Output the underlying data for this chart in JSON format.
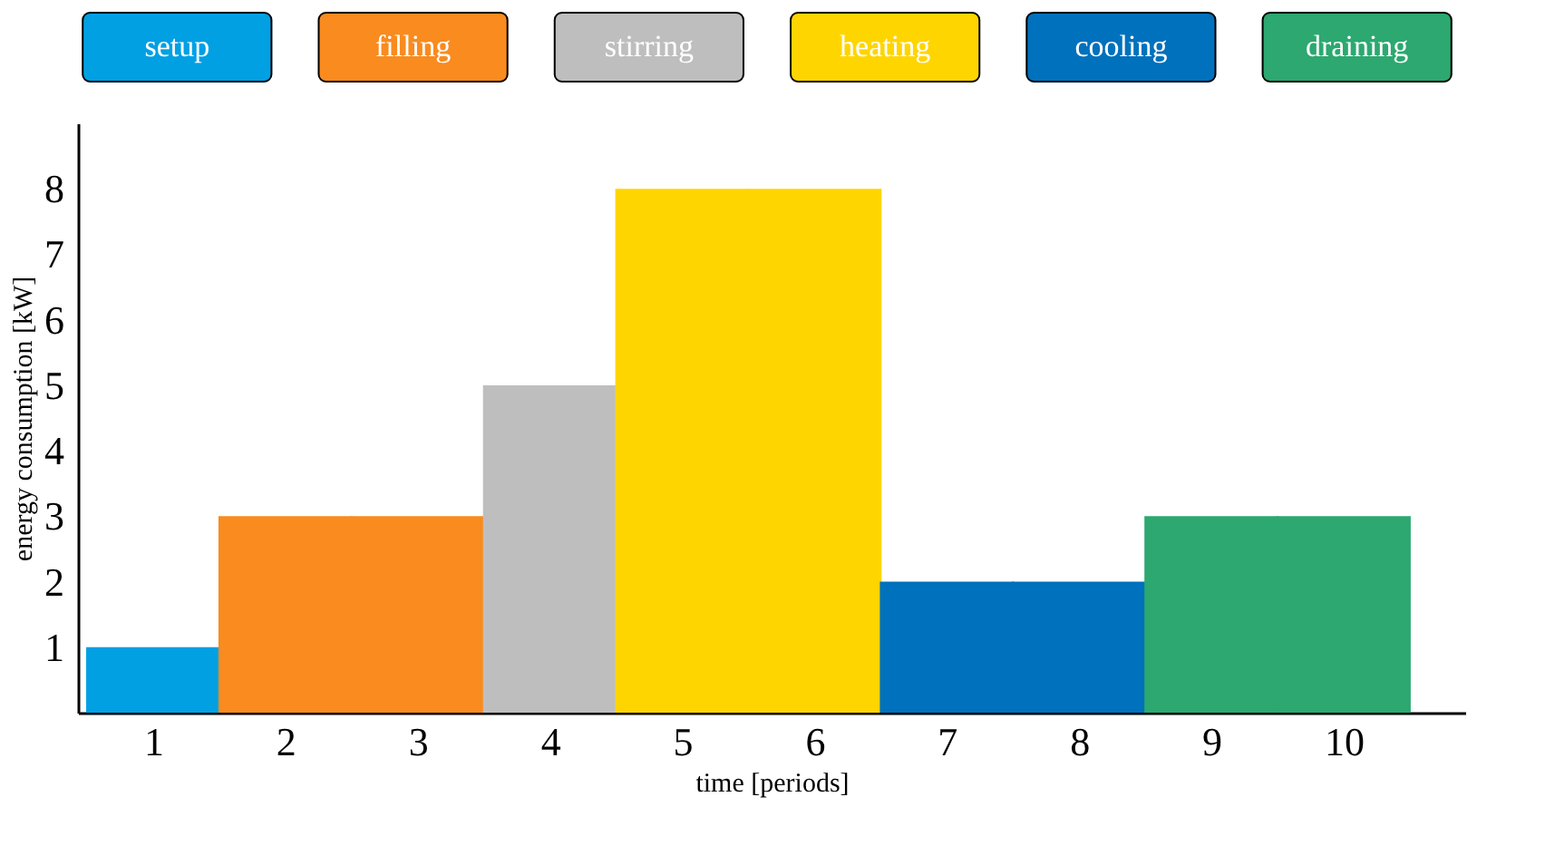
{
  "chart_data": {
    "type": "bar",
    "xlabel": "time [periods]",
    "ylabel": "energy consumption [kW]",
    "xlim": [
      0.5,
      10.85
    ],
    "xticks": [
      1,
      2,
      3,
      4,
      5,
      6,
      7,
      8,
      9,
      10
    ],
    "ylim": [
      0,
      9
    ],
    "yticks": [
      1,
      2,
      3,
      4,
      5,
      6,
      7,
      8
    ],
    "grid": false,
    "legend": "top",
    "series": [
      {
        "name": "setup",
        "color": "#00a0e3",
        "x": [
          1
        ],
        "values": [
          1
        ]
      },
      {
        "name": "filling",
        "color": "#f98b1f",
        "x": [
          2,
          3
        ],
        "values": [
          3,
          3
        ]
      },
      {
        "name": "stirring",
        "color": "#bebebe",
        "x": [
          4
        ],
        "values": [
          5
        ]
      },
      {
        "name": "heating",
        "color": "#ffd500",
        "x": [
          5,
          6
        ],
        "values": [
          8,
          8
        ]
      },
      {
        "name": "cooling",
        "color": "#0071bc",
        "x": [
          7,
          8
        ],
        "values": [
          2,
          2
        ]
      },
      {
        "name": "draining",
        "color": "#2ca870",
        "x": [
          9,
          10
        ],
        "values": [
          3,
          3
        ]
      }
    ]
  }
}
